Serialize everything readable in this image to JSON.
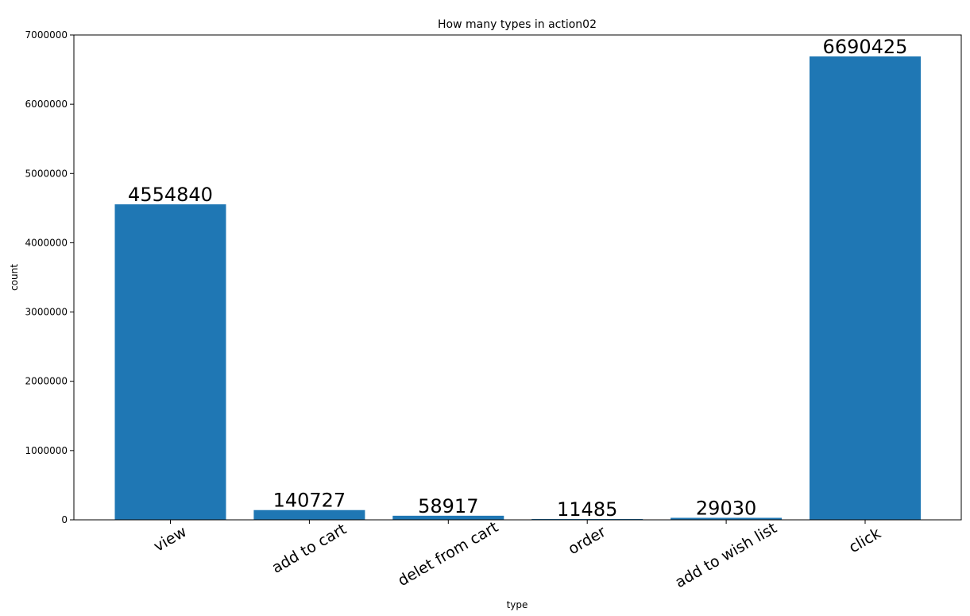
{
  "chart_data": {
    "type": "bar",
    "title": "How many types in action02",
    "xlabel": "type",
    "ylabel": "count",
    "categories": [
      "view",
      "add to cart",
      "delet from cart",
      "order",
      "add to wish list",
      "click"
    ],
    "values": [
      4554840,
      140727,
      58917,
      11485,
      29030,
      6690425
    ],
    "data_labels": [
      "4554840",
      "140727",
      "58917",
      "11485",
      "29030",
      "6690425"
    ],
    "ylim": [
      0,
      7000000
    ],
    "yticks": [
      0,
      1000000,
      2000000,
      3000000,
      4000000,
      5000000,
      6000000,
      7000000
    ],
    "ytick_labels": [
      "0",
      "1000000",
      "2000000",
      "3000000",
      "4000000",
      "5000000",
      "6000000",
      "7000000"
    ],
    "bar_color": "#1f77b4",
    "grid": false,
    "legend": "none",
    "xtick_rotation_deg": 30
  }
}
